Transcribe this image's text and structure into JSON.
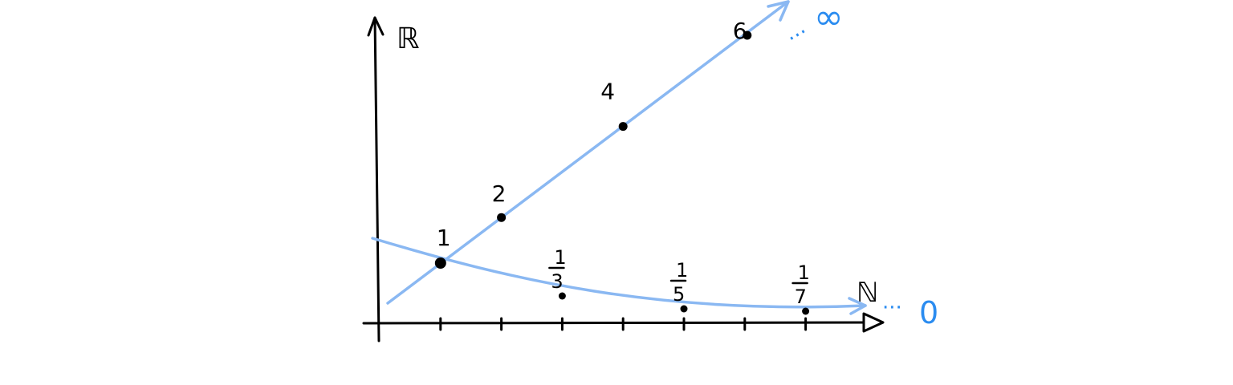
{
  "axes": {
    "y_label": "ℝ",
    "x_label": "ℕ",
    "x_ticks": [
      1,
      2,
      3,
      4,
      5,
      6,
      7
    ]
  },
  "increasing_sequence": {
    "points": [
      {
        "n": 1,
        "label": "1"
      },
      {
        "n": 2,
        "label": "2"
      },
      {
        "n": 4,
        "label": "4"
      },
      {
        "n": 6,
        "label": "6"
      }
    ],
    "limit_label": "∞",
    "dots": "···"
  },
  "decreasing_sequence": {
    "points": [
      {
        "n": 1,
        "numerator": "1",
        "denominator": "1"
      },
      {
        "n": 3,
        "numerator": "1",
        "denominator": "3"
      },
      {
        "n": 5,
        "numerator": "1",
        "denominator": "5"
      },
      {
        "n": 7,
        "numerator": "1",
        "denominator": "7"
      }
    ],
    "limit_label": "0",
    "dots": "···"
  },
  "colors": {
    "ink": "#000000",
    "curve": "#8ab8f2",
    "accent": "#2b8cf0"
  }
}
